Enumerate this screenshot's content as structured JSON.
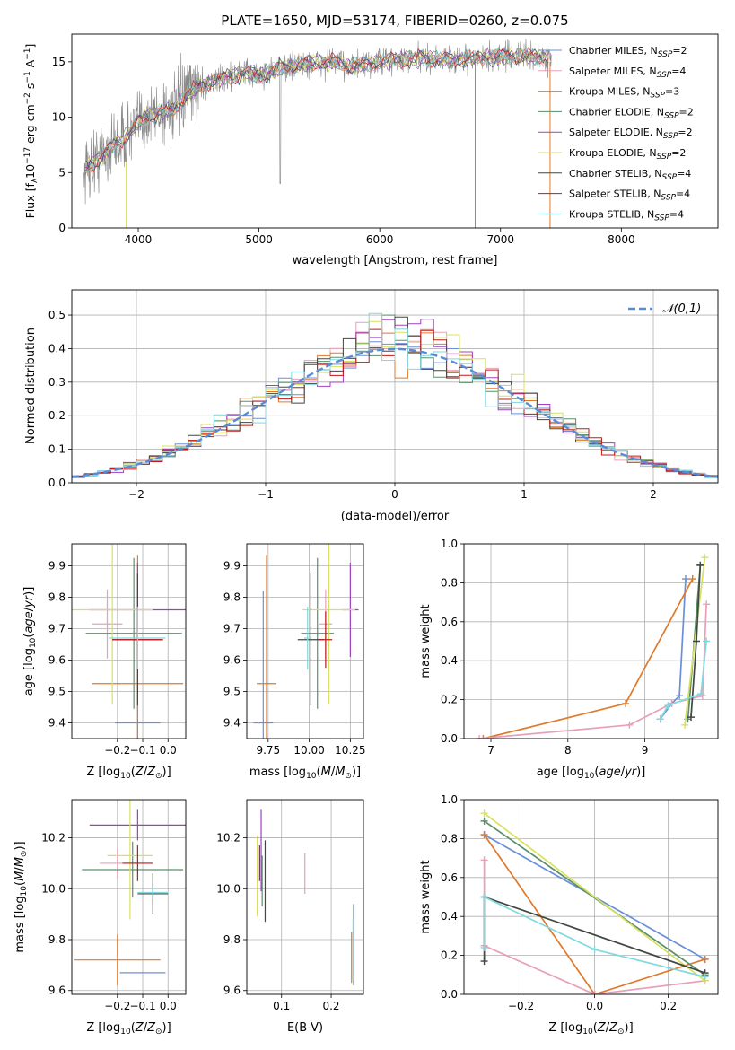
{
  "figure_title": "PLATE=1650, MJD=53174, FIBERID=0260, z=0.075",
  "colors": {
    "Chabrier MILES": "#6a8fd8",
    "Salpeter MILES": "#e8a0b8",
    "Kroupa MILES": "#e07a2a",
    "Chabrier ELODIE": "#5a8f6a",
    "Salpeter ELODIE": "#a040c0",
    "Kroupa ELODIE": "#d8e060",
    "Chabrier STELIB": "#404840",
    "Salpeter STELIB": "#c01818",
    "Kroupa STELIB": "#80d8e0",
    "data": "#888888"
  },
  "chart_data": [
    {
      "id": "spectrum",
      "type": "line",
      "title": "PLATE=1650, MJD=53174, FIBERID=0260, z=0.075",
      "xlabel": "wavelength [Angstrom, rest frame]",
      "ylabel": "Flux [f_λ 10^-17 erg cm^-2 s^-1 A^-1]",
      "xlim": [
        3450,
        8800
      ],
      "ylim": [
        0,
        17.5
      ],
      "xticks": [
        4000,
        5000,
        6000,
        7000,
        8000
      ],
      "yticks": [
        0,
        5,
        10,
        15
      ],
      "grid": false,
      "legend": [
        "Chabrier MILES, N_SSP=2",
        "Salpeter MILES, N_SSP=4",
        "Kroupa MILES, N_SSP=3",
        "Chabrier ELODIE, N_SSP=2",
        "Salpeter ELODIE, N_SSP=2",
        "Kroupa ELODIE, N_SSP=2",
        "Chabrier STELIB, N_SSP=4",
        "Salpeter STELIB, N_SSP=4",
        "Kroupa STELIB, N_SSP=4"
      ],
      "legend_placement": "right",
      "envelope": {
        "x": [
          3550,
          3700,
          3800,
          3900,
          4000,
          4100,
          4200,
          4300,
          4400,
          4500,
          4700,
          4900,
          5000,
          5200,
          5400,
          5600,
          5800,
          6000,
          6200,
          6400,
          6600,
          6800,
          7000,
          7200,
          7400
        ],
        "y": [
          5.2,
          6.5,
          7.5,
          8.2,
          9.5,
          10.2,
          10.5,
          10.8,
          12.0,
          12.8,
          13.5,
          14.0,
          13.8,
          14.5,
          14.8,
          15.0,
          14.6,
          15.0,
          15.2,
          15.3,
          15.2,
          15.3,
          15.5,
          15.5,
          15.4
        ]
      }
    },
    {
      "id": "residuals",
      "type": "line",
      "xlabel": "(data-model)/error",
      "ylabel": "Normed distribution",
      "xlim": [
        -2.5,
        2.5
      ],
      "ylim": [
        0,
        0.575
      ],
      "xticks": [
        -2,
        -1,
        0,
        1,
        2
      ],
      "yticks": [
        0.0,
        0.1,
        0.2,
        0.3,
        0.4,
        0.5
      ],
      "grid": true,
      "legend": [
        "𝒩(0,1)"
      ],
      "legend_placement": "upper right",
      "gaussian": {
        "mean": 0,
        "sigma": 1
      },
      "bin_width": 0.1,
      "bins_start": -2.5
    },
    {
      "id": "age_vs_Z",
      "type": "scatter",
      "xlabel": "Z [log10(Z/Z⊙)]",
      "ylabel": "age  [log10(age/yr)]",
      "xlim": [
        -0.38,
        0.07
      ],
      "ylim": [
        9.35,
        9.97
      ],
      "xticks": [
        -0.2,
        -0.1,
        0.0
      ],
      "yticks": [
        9.4,
        9.5,
        9.6,
        9.7,
        9.8,
        9.9
      ],
      "grid": true,
      "points": [
        {
          "s": "Chabrier MILES",
          "x": -0.12,
          "xe": 0.09,
          "y": 9.4,
          "ye": 0.42
        },
        {
          "s": "Salpeter MILES",
          "x": -0.24,
          "xe": 0.06,
          "y": 9.715,
          "ye": 0.11
        },
        {
          "s": "Kroupa MILES",
          "x": -0.12,
          "xe": 0.18,
          "y": 9.525,
          "ye": 0.41
        },
        {
          "s": "Chabrier ELODIE",
          "x": -0.135,
          "xe": 0.19,
          "y": 9.685,
          "ye": 0.24
        },
        {
          "s": "Salpeter ELODIE",
          "x": -0.12,
          "xe": 0.19,
          "y": 9.76,
          "ye": 0.15
        },
        {
          "s": "Kroupa ELODIE",
          "x": -0.22,
          "xe": 0.16,
          "y": 9.76,
          "ye": 0.3
        },
        {
          "s": "Chabrier STELIB",
          "x": -0.12,
          "xe": 0.1,
          "y": 9.665,
          "ye": 0.21
        },
        {
          "s": "Salpeter STELIB",
          "x": -0.12,
          "xe": 0.1,
          "y": 9.665,
          "ye": 0.06
        },
        {
          "s": "Kroupa STELIB",
          "x": -0.12,
          "xe": 0.11,
          "y": 9.67,
          "ye": 0.1
        }
      ]
    },
    {
      "id": "age_vs_mass",
      "type": "scatter",
      "xlabel": "mass [log10(M/M⊙)]",
      "ylabel": "",
      "xlim": [
        9.62,
        10.33
      ],
      "ylim": [
        9.35,
        9.97
      ],
      "xticks": [
        9.75,
        10.0,
        10.25
      ],
      "yticks": [
        9.4,
        9.5,
        9.6,
        9.7,
        9.8,
        9.9
      ],
      "grid": true,
      "points": [
        {
          "s": "Chabrier MILES",
          "x": 9.72,
          "xe": 0.06,
          "y": 9.4,
          "ye": 0.42
        },
        {
          "s": "Salpeter MILES",
          "x": 10.1,
          "xe": 0.04,
          "y": 9.715,
          "ye": 0.11
        },
        {
          "s": "Kroupa MILES",
          "x": 9.74,
          "xe": 0.06,
          "y": 9.525,
          "ye": 0.41
        },
        {
          "s": "Chabrier ELODIE",
          "x": 10.05,
          "xe": 0.1,
          "y": 9.685,
          "ye": 0.24
        },
        {
          "s": "Salpeter ELODIE",
          "x": 10.25,
          "xe": 0.05,
          "y": 9.76,
          "ye": 0.15
        },
        {
          "s": "Kroupa ELODIE",
          "x": 10.12,
          "xe": 0.16,
          "y": 9.76,
          "ye": 0.3
        },
        {
          "s": "Chabrier STELIB",
          "x": 10.01,
          "xe": 0.08,
          "y": 9.665,
          "ye": 0.21
        },
        {
          "s": "Salpeter STELIB",
          "x": 10.1,
          "xe": 0.04,
          "y": 9.665,
          "ye": 0.09
        },
        {
          "s": "Kroupa STELIB",
          "x": 9.99,
          "xe": 0.02,
          "y": 9.67,
          "ye": 0.1
        }
      ]
    },
    {
      "id": "weight_vs_age",
      "type": "line",
      "xlabel": "age  [log10(age/yr)]",
      "ylabel": "mass weight",
      "xlim": [
        6.65,
        9.95
      ],
      "ylim": [
        0,
        1.0
      ],
      "xticks": [
        7,
        8,
        9
      ],
      "yticks": [
        0.0,
        0.2,
        0.4,
        0.6,
        0.8,
        1.0
      ],
      "grid": true,
      "series": [
        {
          "s": "Chabrier MILES",
          "x": [
            9.2,
            9.35,
            9.45,
            9.53
          ],
          "y": [
            0.1,
            0.18,
            0.22,
            0.82
          ]
        },
        {
          "s": "Kroupa MILES",
          "x": [
            6.9,
            8.75,
            9.62
          ],
          "y": [
            0.0,
            0.18,
            0.82
          ]
        },
        {
          "s": "Salpeter MILES",
          "x": [
            6.85,
            8.8,
            9.35,
            9.75,
            9.8
          ],
          "y": [
            0.0,
            0.07,
            0.18,
            0.22,
            0.69
          ]
        },
        {
          "s": "Chabrier ELODIE",
          "x": [
            9.56,
            9.72
          ],
          "y": [
            0.1,
            0.89
          ]
        },
        {
          "s": "Kroupa ELODIE",
          "x": [
            9.52,
            9.78
          ],
          "y": [
            0.07,
            0.93
          ]
        },
        {
          "s": "Chabrier STELIB",
          "x": [
            9.6,
            9.67,
            9.72
          ],
          "y": [
            0.11,
            0.5,
            0.89
          ]
        },
        {
          "s": "Kroupa STELIB",
          "x": [
            9.2,
            9.3,
            9.73,
            9.8
          ],
          "y": [
            0.1,
            0.17,
            0.23,
            0.5
          ]
        }
      ]
    },
    {
      "id": "mass_vs_Z",
      "type": "scatter",
      "xlabel": "Z [log10(Z/Z⊙)]",
      "ylabel": "mass [log10(M/M⊙)]",
      "xlim": [
        -0.38,
        0.07
      ],
      "ylim": [
        9.585,
        10.35
      ],
      "xticks": [
        -0.2,
        -0.1,
        0.0
      ],
      "yticks": [
        9.6,
        9.8,
        10.0,
        10.2
      ],
      "grid": true,
      "points": [
        {
          "s": "Chabrier MILES",
          "x": -0.1,
          "xe": 0.09,
          "y": 9.67,
          "ye": 0.0
        },
        {
          "s": "Salpeter MILES",
          "x": -0.2,
          "xe": 0.07,
          "y": 10.1,
          "ye": 0.06
        },
        {
          "s": "Kroupa MILES",
          "x": -0.2,
          "xe": 0.17,
          "y": 9.72,
          "ye": 0.1
        },
        {
          "s": "Chabrier ELODIE",
          "x": -0.14,
          "xe": 0.2,
          "y": 10.075,
          "ye": 0.11
        },
        {
          "s": "Salpeter ELODIE",
          "x": -0.12,
          "xe": 0.19,
          "y": 10.25,
          "ye": 0.06
        },
        {
          "s": "Kroupa ELODIE",
          "x": -0.15,
          "xe": 0.09,
          "y": 10.13,
          "ye": 0.25
        },
        {
          "s": "Chabrier STELIB",
          "x": -0.06,
          "xe": 0.06,
          "y": 9.98,
          "ye": 0.08
        },
        {
          "s": "Salpeter STELIB",
          "x": -0.12,
          "xe": 0.06,
          "y": 10.1,
          "ye": 0.07
        },
        {
          "s": "Kroupa STELIB",
          "x": -0.06,
          "xe": 0.06,
          "y": 9.985,
          "ye": 0.02
        }
      ]
    },
    {
      "id": "mass_vs_ebv",
      "type": "scatter",
      "xlabel": "E(B-V)",
      "ylabel": "",
      "xlim": [
        0.03,
        0.265
      ],
      "ylim": [
        9.585,
        10.35
      ],
      "xticks": [
        0.1,
        0.2
      ],
      "yticks": [
        9.6,
        9.8,
        10.0,
        10.2
      ],
      "grid": true,
      "points": [
        {
          "s": "Chabrier MILES",
          "x": 0.245,
          "y": 9.78,
          "ye": 0.16
        },
        {
          "s": "Salpeter MILES",
          "x": 0.147,
          "y": 10.06,
          "ye": 0.08
        },
        {
          "s": "Kroupa MILES",
          "x": 0.241,
          "y": 9.73,
          "ye": 0.1
        },
        {
          "s": "Chabrier ELODIE",
          "x": 0.061,
          "y": 10.03,
          "ye": 0.1
        },
        {
          "s": "Salpeter ELODIE",
          "x": 0.059,
          "y": 10.15,
          "ye": 0.16
        },
        {
          "s": "Kroupa ELODIE",
          "x": 0.051,
          "y": 10.05,
          "ye": 0.16
        },
        {
          "s": "Chabrier STELIB",
          "x": 0.067,
          "y": 10.03,
          "ye": 0.16
        },
        {
          "s": "Salpeter STELIB",
          "x": 0.056,
          "y": 10.1,
          "ye": 0.07
        },
        {
          "s": "Kroupa STELIB",
          "x": 0.244,
          "y": 9.76,
          "ye": 0.12
        }
      ]
    },
    {
      "id": "weight_vs_Z",
      "type": "line",
      "xlabel": "Z [log10(Z/Z⊙)]",
      "ylabel": "mass weight",
      "xlim": [
        -0.355,
        0.335
      ],
      "ylim": [
        0,
        1.0
      ],
      "xticks": [
        -0.2,
        0.0,
        0.2
      ],
      "yticks": [
        0.0,
        0.2,
        0.4,
        0.6,
        0.8,
        1.0
      ],
      "grid": true,
      "series": [
        {
          "s": "Chabrier MILES",
          "x": [
            -0.3,
            0.3
          ],
          "y": [
            0.82,
            0.18
          ]
        },
        {
          "s": "Kroupa MILES",
          "x": [
            -0.3,
            0.0,
            0.3
          ],
          "y": [
            0.82,
            0.0,
            0.18
          ]
        },
        {
          "s": "Salpeter MILES",
          "x": [
            -0.3,
            -0.3,
            0.0,
            0.3
          ],
          "y": [
            0.69,
            0.25,
            0.0,
            0.07
          ]
        },
        {
          "s": "Chabrier ELODIE",
          "x": [
            -0.3,
            0.3
          ],
          "y": [
            0.89,
            0.1
          ]
        },
        {
          "s": "Kroupa ELODIE",
          "x": [
            -0.3,
            0.3
          ],
          "y": [
            0.93,
            0.07
          ]
        },
        {
          "s": "Chabrier STELIB",
          "x": [
            -0.3,
            -0.3,
            0.3
          ],
          "y": [
            0.17,
            0.5,
            0.11
          ]
        },
        {
          "s": "Kroupa STELIB",
          "x": [
            -0.3,
            -0.3,
            0.0,
            0.3
          ],
          "y": [
            0.24,
            0.5,
            0.23,
            0.09
          ]
        }
      ]
    }
  ]
}
